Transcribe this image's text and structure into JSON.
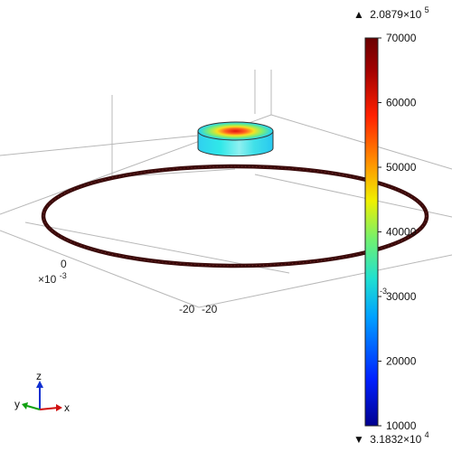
{
  "plot": {
    "axis_ticks": {
      "x_zero": "0",
      "x_exp_base": "×10",
      "x_exp_power": "-3",
      "left_minus20": "-20",
      "right_minus20": "-20",
      "right_exp_power": "-3"
    },
    "colorbar": {
      "max_marker": "▲",
      "max_base": "2.0879×10",
      "max_exp": "5",
      "min_marker": "▼",
      "min_base": "3.1832×10",
      "min_exp": "4",
      "ticks": [
        "70000",
        "60000",
        "50000",
        "40000",
        "30000",
        "20000",
        "10000"
      ],
      "tick_values": [
        70000,
        60000,
        50000,
        40000,
        30000,
        20000,
        10000
      ],
      "range": [
        10000,
        70000
      ],
      "colormap": "rainbow",
      "colors": [
        "#00008f",
        "#0020ff",
        "#00a0ff",
        "#20e0d0",
        "#70f070",
        "#f0f000",
        "#ff9000",
        "#ff2000",
        "#a00000",
        "#6a0000"
      ]
    },
    "triad": {
      "z": "z",
      "y": "y",
      "x": "x",
      "z_color": "#1030d0",
      "y_color": "#10a010",
      "x_color": "#d01010"
    },
    "ring_color": "#3a0a0a"
  }
}
